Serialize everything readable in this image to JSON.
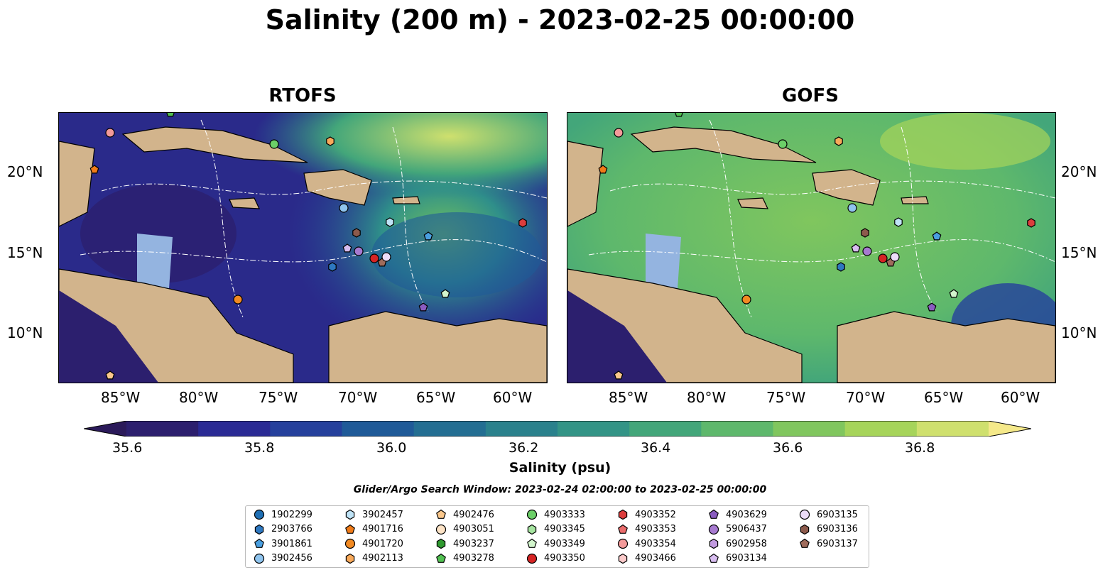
{
  "title": "Salinity (200 m) - 2023-02-25 00:00:00",
  "panels": [
    {
      "title": "RTOFS"
    },
    {
      "title": "GOFS"
    }
  ],
  "axes": {
    "x_ticks": [
      "85°W",
      "80°W",
      "75°W",
      "70°W",
      "65°W",
      "60°W"
    ],
    "y_ticks": [
      "20°N",
      "15°N",
      "10°N"
    ]
  },
  "colorbar": {
    "label": "Salinity (psu)",
    "ticks": [
      "35.6",
      "35.8",
      "36.0",
      "36.2",
      "36.4",
      "36.6",
      "36.8"
    ],
    "colors": [
      "#2c1f6e",
      "#2a2a94",
      "#25409c",
      "#1f5a98",
      "#236e92",
      "#2a818c",
      "#339486",
      "#43a67a",
      "#5eb86c",
      "#80c65e",
      "#a6d45a",
      "#cfe06e"
    ],
    "extend_colors": [
      "#2b1a5a",
      "#f5e98a"
    ]
  },
  "search_window": "Glider/Argo Search Window: 2023-02-24 02:00:00 to 2023-02-25 00:00:00",
  "legend": {
    "items": [
      {
        "id": "1902299",
        "marker": "circle",
        "color": "#1f6fb4"
      },
      {
        "id": "2903766",
        "marker": "hexagon",
        "color": "#2e78c0"
      },
      {
        "id": "3901861",
        "marker": "pentagon",
        "color": "#4a9fe0"
      },
      {
        "id": "3902456",
        "marker": "circle",
        "color": "#8fc4ee"
      },
      {
        "id": "3902457",
        "marker": "hexagon",
        "color": "#bfe3f6"
      },
      {
        "id": "4901716",
        "marker": "pentagon",
        "color": "#f07b18"
      },
      {
        "id": "4901720",
        "marker": "circle",
        "color": "#f28a22"
      },
      {
        "id": "4902113",
        "marker": "hexagon",
        "color": "#f8a95a"
      },
      {
        "id": "4902476",
        "marker": "pentagon",
        "color": "#fbc88c"
      },
      {
        "id": "4903051",
        "marker": "circle",
        "color": "#fde3c6"
      },
      {
        "id": "4903237",
        "marker": "hexagon",
        "color": "#2f9a30"
      },
      {
        "id": "4903278",
        "marker": "pentagon",
        "color": "#52c152"
      },
      {
        "id": "4903333",
        "marker": "circle",
        "color": "#6ccf68"
      },
      {
        "id": "4903345",
        "marker": "hexagon",
        "color": "#a6e4a0"
      },
      {
        "id": "4903349",
        "marker": "pentagon",
        "color": "#d2f5cc"
      },
      {
        "id": "4903350",
        "marker": "circle",
        "color": "#d62424"
      },
      {
        "id": "4903352",
        "marker": "hexagon",
        "color": "#dc3d3d"
      },
      {
        "id": "4903353",
        "marker": "pentagon",
        "color": "#ea6c6c"
      },
      {
        "id": "4903354",
        "marker": "circle",
        "color": "#f39a9a"
      },
      {
        "id": "4903466",
        "marker": "hexagon",
        "color": "#fbcaca"
      },
      {
        "id": "4903629",
        "marker": "pentagon",
        "color": "#8a5cc0"
      },
      {
        "id": "5906437",
        "marker": "circle",
        "color": "#a77ad0"
      },
      {
        "id": "6902958",
        "marker": "hexagon",
        "color": "#c29be0"
      },
      {
        "id": "6903134",
        "marker": "pentagon",
        "color": "#d8bdf0"
      },
      {
        "id": "6903135",
        "marker": "circle",
        "color": "#ecdcf8"
      },
      {
        "id": "6903136",
        "marker": "hexagon",
        "color": "#8c5a4c"
      },
      {
        "id": "6903137",
        "marker": "pentagon",
        "color": "#a06c5c"
      }
    ]
  },
  "colors": {
    "land": "#d2b48c",
    "shelf": "#94b4e0",
    "coast": "#000000",
    "contour": "#ffffff"
  }
}
